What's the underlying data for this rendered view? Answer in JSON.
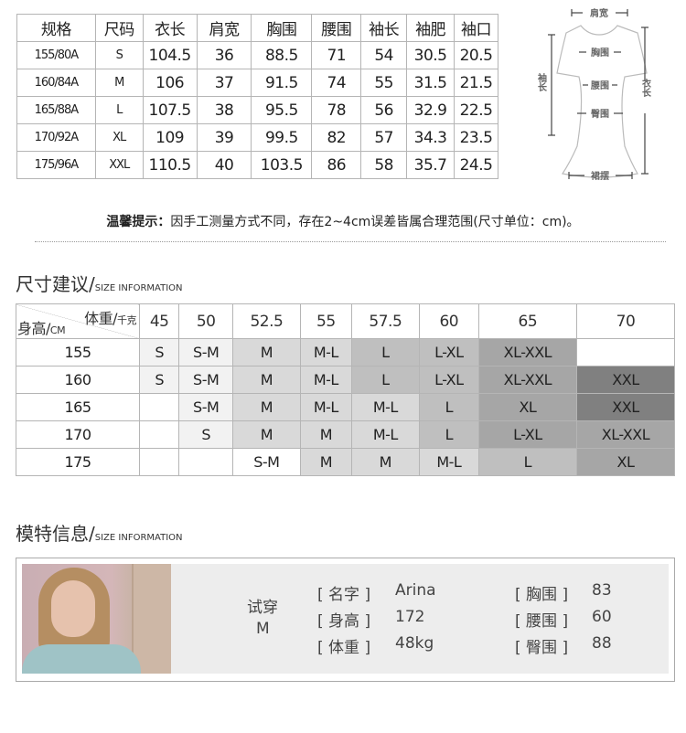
{
  "spec_table": {
    "headers": [
      "规格",
      "尺码",
      "衣长",
      "肩宽",
      "胸围",
      "腰围",
      "袖长",
      "袖肥",
      "袖口"
    ],
    "rows": [
      [
        "155/80A",
        "S",
        "104.5",
        "36",
        "88.5",
        "71",
        "54",
        "30.5",
        "20.5"
      ],
      [
        "160/84A",
        "M",
        "106",
        "37",
        "91.5",
        "74",
        "55",
        "31.5",
        "21.5"
      ],
      [
        "165/88A",
        "L",
        "107.5",
        "38",
        "95.5",
        "78",
        "56",
        "32.9",
        "22.5"
      ],
      [
        "170/92A",
        "XL",
        "109",
        "39",
        "99.5",
        "82",
        "57",
        "34.3",
        "23.5"
      ],
      [
        "175/96A",
        "XXL",
        "110.5",
        "40",
        "103.5",
        "86",
        "58",
        "35.7",
        "24.5"
      ]
    ]
  },
  "diagram": {
    "shoulder": "肩宽",
    "chest": "胸围",
    "waist": "腰围",
    "hip": "臀围",
    "hem": "裙摆",
    "sleeve": "袖长",
    "length": "衣长"
  },
  "note": {
    "prefix": "温馨提示：",
    "text": "因手工测量方式不同，存在2~4cm误差皆属合理范围(尺寸单位：cm)。"
  },
  "size_section": {
    "title": "尺寸建议/",
    "subtitle": "SIZE INFORMATION",
    "weight_label": "体重/",
    "weight_unit": "千克",
    "height_label": "身高/",
    "height_unit": "CM",
    "weights": [
      "45",
      "50",
      "52.5",
      "55",
      "57.5",
      "60",
      "65",
      "70"
    ],
    "rows": [
      {
        "height": "155",
        "sizes": [
          "S",
          "S-M",
          "M",
          "M-L",
          "L",
          "L-XL",
          "XL-XXL",
          ""
        ]
      },
      {
        "height": "160",
        "sizes": [
          "S",
          "S-M",
          "M",
          "M-L",
          "L",
          "L-XL",
          "XL-XXL",
          "XXL"
        ]
      },
      {
        "height": "165",
        "sizes": [
          "",
          "S-M",
          "M",
          "M-L",
          "M-L",
          "L",
          "XL",
          "XXL"
        ]
      },
      {
        "height": "170",
        "sizes": [
          "",
          "S",
          "M",
          "M",
          "M-L",
          "L",
          "L-XL",
          "XL-XXL"
        ]
      },
      {
        "height": "175",
        "sizes": [
          "",
          "",
          "S-M",
          "M",
          "M",
          "M-L",
          "L",
          "XL"
        ]
      }
    ],
    "colors": {
      "S": "#f2f2f2",
      "S-M": "#f2f2f2",
      "M": "#d9d9d9",
      "M-L": "#d9d9d9",
      "L": "#bfbfbf",
      "L-XL": "#bfbfbf",
      "XL": "#a6a6a6",
      "XL-XXL": "#a6a6a6",
      "XXL": "#808080"
    }
  },
  "model_section": {
    "title": "模特信息/",
    "subtitle": "SIZE INFORMATION",
    "try_label": "试穿",
    "try_size": "M",
    "left": [
      {
        "label": "[ 名字 ]",
        "value": "Arina"
      },
      {
        "label": "[ 身高 ]",
        "value": "172"
      },
      {
        "label": "[ 体重 ]",
        "value": "48kg"
      }
    ],
    "right": [
      {
        "label": "[ 胸围 ]",
        "value": "83"
      },
      {
        "label": "[ 腰围 ]",
        "value": "60"
      },
      {
        "label": "[ 臀围 ]",
        "value": "88"
      }
    ]
  }
}
